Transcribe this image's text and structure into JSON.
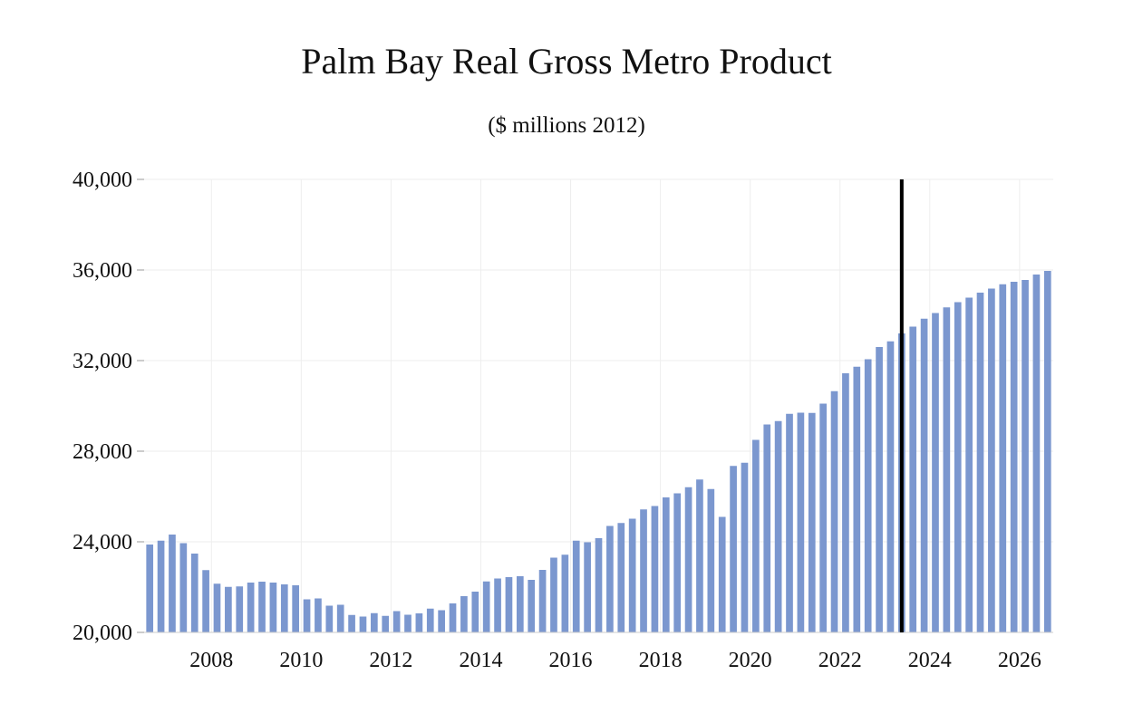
{
  "chart_data": {
    "type": "bar",
    "title": "Palm Bay Real Gross Metro Product",
    "subtitle": "($ millions 2012)",
    "xlabel": "",
    "ylabel": "",
    "ylim": [
      20000,
      40000
    ],
    "y_ticks": [
      20000,
      24000,
      28000,
      32000,
      36000,
      40000
    ],
    "x_tick_labels": [
      "2008",
      "2010",
      "2012",
      "2014",
      "2016",
      "2018",
      "2020",
      "2022",
      "2024",
      "2026"
    ],
    "start_year": 2007,
    "start_quarter": 1,
    "forecast_marker": "2024 Q1",
    "bar_color": "#7b97cf",
    "marker_color": "#000000",
    "grid": true,
    "values": [
      23880,
      24050,
      24320,
      23940,
      23480,
      22750,
      22150,
      22010,
      22030,
      22200,
      22240,
      22200,
      22120,
      22080,
      21460,
      21500,
      21180,
      21220,
      20770,
      20700,
      20850,
      20730,
      20940,
      20780,
      20840,
      21050,
      20980,
      21280,
      21600,
      21800,
      22250,
      22380,
      22440,
      22480,
      22320,
      22760,
      23300,
      23430,
      24050,
      23980,
      24160,
      24700,
      24830,
      25020,
      25430,
      25580,
      25960,
      26140,
      26410,
      26750,
      26330,
      25100,
      27350,
      27490,
      28500,
      29180,
      29330,
      29650,
      29700,
      29690,
      30100,
      30650,
      31440,
      31730,
      32060,
      32600,
      32850,
      33200,
      33500,
      33850,
      34100,
      34350,
      34580,
      34780,
      35000,
      35180,
      35370,
      35480,
      35560,
      35800,
      35960
    ]
  }
}
